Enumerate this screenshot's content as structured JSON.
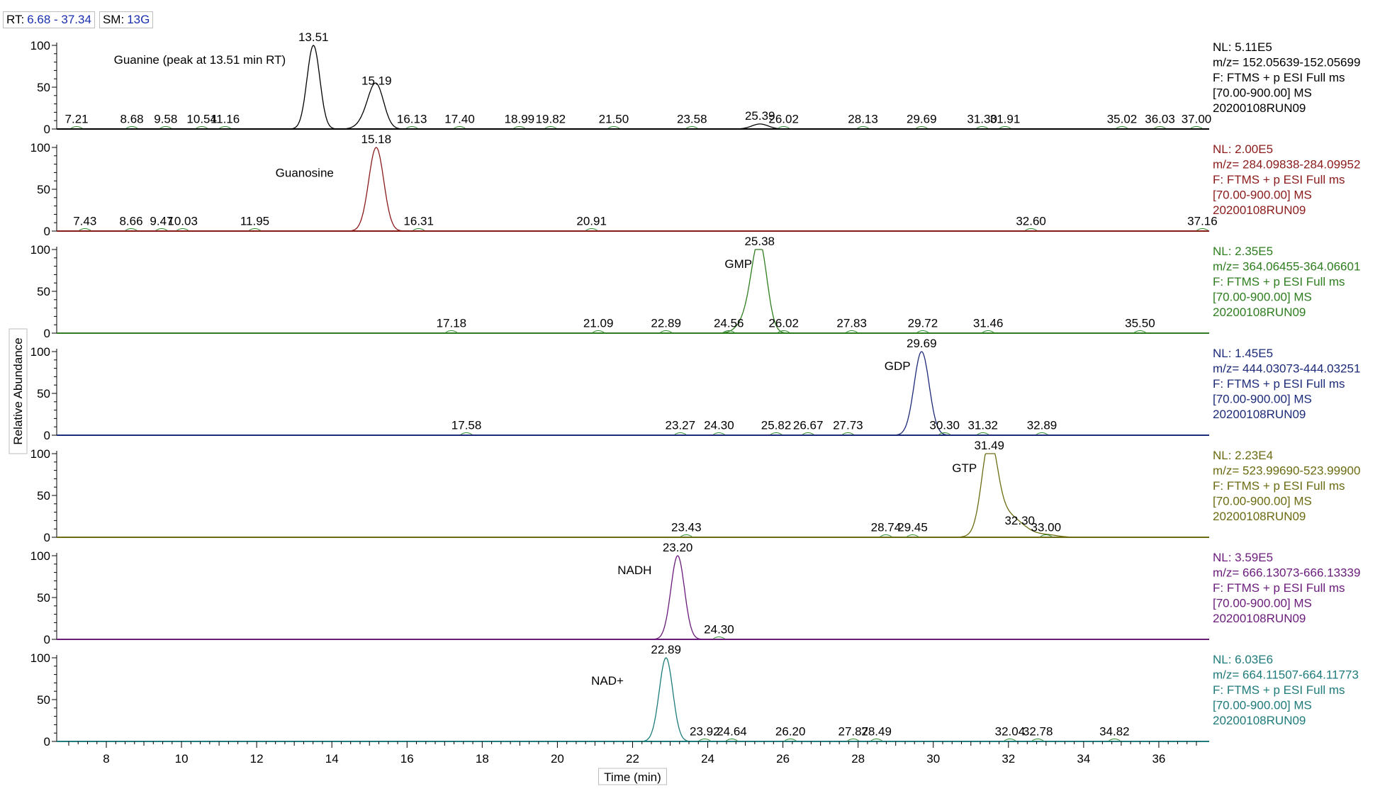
{
  "header": {
    "rt_label": "RT:",
    "rt_value": "6.68 - 37.34",
    "sm_label": "SM:",
    "sm_value": "13G"
  },
  "chart_data": {
    "type": "line",
    "xlabel": "Time (min)",
    "ylabel": "Relative Abundance",
    "xlim": [
      6.68,
      37.34
    ],
    "ylim": [
      0,
      100
    ],
    "x_ticks": [
      8,
      10,
      12,
      14,
      16,
      18,
      20,
      22,
      24,
      26,
      28,
      30,
      32,
      34,
      36
    ],
    "y_ticks": [
      0,
      50,
      100
    ],
    "series": [
      {
        "color": "#000000",
        "title": "Guanine (peak at 13.51 min RT)",
        "title_x": 8.2,
        "title_y": 78,
        "info": [
          "NL: 5.11E5",
          "m/z= 152.05639-152.05699",
          "F: FTMS + p ESI Full ms",
          "[70.00-900.00]  MS",
          "20200108RUN09"
        ],
        "peaks": [
          {
            "rt": 13.51,
            "h": 100,
            "w": 0.17
          },
          {
            "rt": 15.19,
            "h": 48,
            "w": 0.2
          },
          {
            "rt": 14.95,
            "h": 12,
            "w": 0.22
          },
          {
            "rt": 25.39,
            "h": 6,
            "w": 0.22
          }
        ],
        "labels": [
          {
            "rt": 7.21,
            "text": "7.21",
            "y": 2
          },
          {
            "rt": 8.68,
            "text": "8.68",
            "y": 2
          },
          {
            "rt": 9.58,
            "text": "9.58",
            "y": 2
          },
          {
            "rt": 10.54,
            "text": "10.54",
            "y": 2
          },
          {
            "rt": 11.16,
            "text": "11.16",
            "y": 2
          },
          {
            "rt": 13.51,
            "text": "13.51",
            "y": 100
          },
          {
            "rt": 15.19,
            "text": "15.19",
            "y": 48
          },
          {
            "rt": 16.13,
            "text": "16.13",
            "y": 2
          },
          {
            "rt": 17.4,
            "text": "17.40",
            "y": 2
          },
          {
            "rt": 18.99,
            "text": "18.99",
            "y": 2
          },
          {
            "rt": 19.82,
            "text": "19.82",
            "y": 2
          },
          {
            "rt": 21.5,
            "text": "21.50",
            "y": 2
          },
          {
            "rt": 23.58,
            "text": "23.58",
            "y": 2
          },
          {
            "rt": 25.39,
            "text": "25.39",
            "y": 6
          },
          {
            "rt": 26.02,
            "text": "26.02",
            "y": 2
          },
          {
            "rt": 28.13,
            "text": "28.13",
            "y": 2
          },
          {
            "rt": 29.69,
            "text": "29.69",
            "y": 2
          },
          {
            "rt": 31.3,
            "text": "31.30",
            "y": 2
          },
          {
            "rt": 31.91,
            "text": "31.91",
            "y": 2
          },
          {
            "rt": 35.02,
            "text": "35.02",
            "y": 2
          },
          {
            "rt": 36.03,
            "text": "36.03",
            "y": 2
          },
          {
            "rt": 37.0,
            "text": "37.00",
            "y": 2
          }
        ]
      },
      {
        "color": "#8b1a1a",
        "title": "Guanosine",
        "title_x": 12.5,
        "title_y": 65,
        "info": [
          "NL: 2.00E5",
          "m/z= 284.09838-284.09952",
          "F: FTMS + p ESI Full ms",
          "[70.00-900.00]  MS",
          "20200108RUN09"
        ],
        "peaks": [
          {
            "rt": 15.18,
            "h": 100,
            "w": 0.2
          }
        ],
        "labels": [
          {
            "rt": 7.43,
            "text": "7.43",
            "y": 2
          },
          {
            "rt": 8.66,
            "text": "8.66",
            "y": 2
          },
          {
            "rt": 9.47,
            "text": "9.47",
            "y": 2
          },
          {
            "rt": 10.03,
            "text": "10.03",
            "y": 2
          },
          {
            "rt": 11.95,
            "text": "11.95",
            "y": 2
          },
          {
            "rt": 15.18,
            "text": "15.18",
            "y": 100
          },
          {
            "rt": 16.31,
            "text": "16.31",
            "y": 2
          },
          {
            "rt": 20.91,
            "text": "20.91",
            "y": 2
          },
          {
            "rt": 32.6,
            "text": "32.60",
            "y": 2
          },
          {
            "rt": 37.16,
            "text": "37.16",
            "y": 2
          }
        ]
      },
      {
        "color": "#2e7d1f",
        "title": "GMP",
        "title_x": 24.45,
        "title_y": 78,
        "info": [
          "NL: 2.35E5",
          "m/z= 364.06455-364.06601",
          "F: FTMS + p ESI Full ms",
          "[70.00-900.00]  MS",
          "20200108RUN09"
        ],
        "peaks": [
          {
            "rt": 25.38,
            "h": 100,
            "w": 0.2
          },
          {
            "rt": 25.1,
            "h": 20,
            "w": 0.25
          }
        ],
        "labels": [
          {
            "rt": 17.18,
            "text": "17.18",
            "y": 2
          },
          {
            "rt": 21.09,
            "text": "21.09",
            "y": 2
          },
          {
            "rt": 22.89,
            "text": "22.89",
            "y": 2
          },
          {
            "rt": 24.56,
            "text": "24.56",
            "y": 2
          },
          {
            "rt": 25.38,
            "text": "25.38",
            "y": 100
          },
          {
            "rt": 26.02,
            "text": "26.02",
            "y": 2
          },
          {
            "rt": 27.83,
            "text": "27.83",
            "y": 2
          },
          {
            "rt": 29.72,
            "text": "29.72",
            "y": 2
          },
          {
            "rt": 31.46,
            "text": "31.46",
            "y": 2
          },
          {
            "rt": 35.5,
            "text": "35.50",
            "y": 2
          }
        ]
      },
      {
        "color": "#1c2a78",
        "title": "GDP",
        "title_x": 28.7,
        "title_y": 78,
        "info": [
          "NL: 1.45E5",
          "m/z= 444.03073-444.03251",
          "F: FTMS + p ESI Full ms",
          "[70.00-900.00]  MS",
          "20200108RUN09"
        ],
        "peaks": [
          {
            "rt": 29.69,
            "h": 100,
            "w": 0.2
          }
        ],
        "labels": [
          {
            "rt": 17.58,
            "text": "17.58",
            "y": 2
          },
          {
            "rt": 23.27,
            "text": "23.27",
            "y": 2
          },
          {
            "rt": 24.3,
            "text": "24.30",
            "y": 2
          },
          {
            "rt": 25.82,
            "text": "25.82",
            "y": 2
          },
          {
            "rt": 26.67,
            "text": "26.67",
            "y": 2
          },
          {
            "rt": 27.73,
            "text": "27.73",
            "y": 2
          },
          {
            "rt": 29.69,
            "text": "29.69",
            "y": 100
          },
          {
            "rt": 30.3,
            "text": "30.30",
            "y": 2
          },
          {
            "rt": 31.32,
            "text": "31.32",
            "y": 2
          },
          {
            "rt": 32.89,
            "text": "32.89",
            "y": 2
          }
        ]
      },
      {
        "color": "#6b6b12",
        "title": "GTP",
        "title_x": 30.5,
        "title_y": 78,
        "info": [
          "NL: 2.23E4",
          "m/z= 523.99690-523.99900",
          "F: FTMS + p ESI Full ms",
          "[70.00-900.00]  MS",
          "20200108RUN09"
        ],
        "peaks": [
          {
            "rt": 31.49,
            "h": 95,
            "w": 0.2
          },
          {
            "rt": 31.75,
            "h": 30,
            "w": 0.35
          },
          {
            "rt": 32.3,
            "h": 10,
            "w": 0.3
          },
          {
            "rt": 33.0,
            "h": 3,
            "w": 0.3
          }
        ],
        "labels": [
          {
            "rt": 23.43,
            "text": "23.43",
            "y": 2
          },
          {
            "rt": 28.74,
            "text": "28.74",
            "y": 2
          },
          {
            "rt": 29.45,
            "text": "29.45",
            "y": 2
          },
          {
            "rt": 31.49,
            "text": "31.49",
            "y": 100
          },
          {
            "rt": 32.3,
            "text": "32.30",
            "y": 10
          },
          {
            "rt": 33.0,
            "text": "33.00",
            "y": 2
          }
        ]
      },
      {
        "color": "#6a1b7a",
        "title": "NADH",
        "title_x": 21.6,
        "title_y": 78,
        "info": [
          "NL: 3.59E5",
          "m/z= 666.13073-666.13339",
          "F: FTMS + p ESI Full ms",
          "[70.00-900.00]  MS",
          "20200108RUN09"
        ],
        "peaks": [
          {
            "rt": 23.2,
            "h": 100,
            "w": 0.18
          }
        ],
        "labels": [
          {
            "rt": 23.2,
            "text": "23.20",
            "y": 100
          },
          {
            "rt": 24.3,
            "text": "24.30",
            "y": 2
          }
        ]
      },
      {
        "color": "#1f7a7a",
        "title": "NAD+",
        "title_x": 20.9,
        "title_y": 68,
        "info": [
          "NL: 6.03E6",
          "m/z= 664.11507-664.11773",
          "F: FTMS + p ESI Full ms",
          "[70.00-900.00]  MS",
          "20200108RUN09"
        ],
        "peaks": [
          {
            "rt": 22.89,
            "h": 100,
            "w": 0.18
          }
        ],
        "labels": [
          {
            "rt": 22.89,
            "text": "22.89",
            "y": 100
          },
          {
            "rt": 23.92,
            "text": "23.92",
            "y": 2
          },
          {
            "rt": 24.64,
            "text": "24.64",
            "y": 2
          },
          {
            "rt": 26.2,
            "text": "26.20",
            "y": 2
          },
          {
            "rt": 27.87,
            "text": "27.87",
            "y": 2
          },
          {
            "rt": 28.49,
            "text": "28.49",
            "y": 2
          },
          {
            "rt": 32.04,
            "text": "32.04",
            "y": 2
          },
          {
            "rt": 32.78,
            "text": "32.78",
            "y": 2
          },
          {
            "rt": 34.82,
            "text": "34.82",
            "y": 2
          }
        ]
      }
    ]
  }
}
